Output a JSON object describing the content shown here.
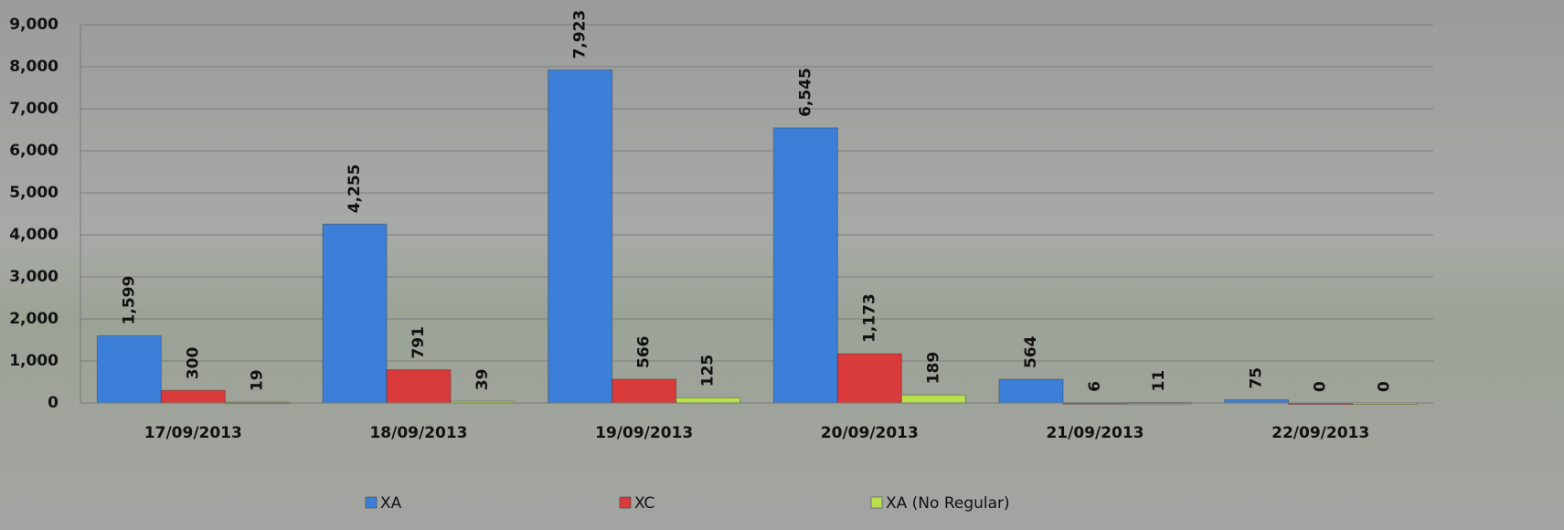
{
  "chart_data": {
    "type": "bar",
    "categories": [
      "17/09/2013",
      "18/09/2013",
      "19/09/2013",
      "20/09/2013",
      "21/09/2013",
      "22/09/2013"
    ],
    "series": [
      {
        "name": "XA",
        "color": "#3b7fd9",
        "values": [
          1599,
          4255,
          7923,
          6545,
          564,
          75
        ],
        "value_labels": [
          "1,599",
          "4,255",
          "7,923",
          "6,545",
          "564",
          "75"
        ]
      },
      {
        "name": "XC",
        "color": "#d93a3a",
        "values": [
          300,
          791,
          566,
          1173,
          6,
          0
        ],
        "value_labels": [
          "300",
          "791",
          "566",
          "1,173",
          "6",
          "0"
        ]
      },
      {
        "name": "XA (No Regular)",
        "color": "#b8e04c",
        "values": [
          19,
          39,
          125,
          189,
          11,
          0
        ],
        "value_labels": [
          "19",
          "39",
          "125",
          "189",
          "11",
          "0"
        ]
      }
    ],
    "ylim": [
      0,
      9000
    ],
    "yticks": [
      0,
      {
        "value": 1000,
        "label": "1,000"
      },
      {
        "value": 2000,
        "label": "2,000"
      },
      {
        "value": 3000,
        "label": "3,000"
      },
      {
        "value": 4000,
        "label": "4,000"
      },
      {
        "value": 5000,
        "label": "5,000"
      },
      {
        "value": 6000,
        "label": "6,000"
      },
      {
        "value": 7000,
        "label": "7,000"
      },
      {
        "value": 8000,
        "label": "8,000"
      },
      {
        "value": 9000,
        "label": "9,000"
      }
    ],
    "grid": true,
    "legend": "bottom"
  }
}
